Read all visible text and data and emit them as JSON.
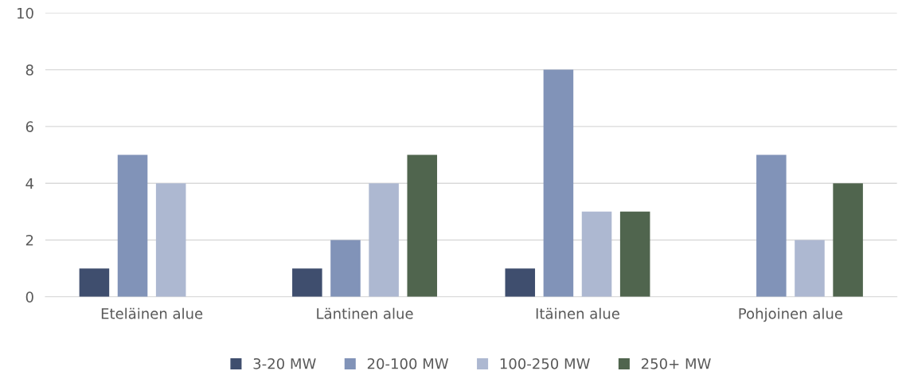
{
  "chart_data": {
    "type": "bar",
    "categories": [
      "Eteläinen alue",
      "Läntinen alue",
      "Itäinen alue",
      "Pohjoinen alue"
    ],
    "series": [
      {
        "name": "3-20 MW",
        "color": "#3f4e6e",
        "values": [
          1,
          1,
          1,
          0
        ]
      },
      {
        "name": "20-100 MW",
        "color": "#8193b8",
        "values": [
          5,
          2,
          8,
          5
        ]
      },
      {
        "name": "100-250 MW",
        "color": "#adb8d1",
        "values": [
          4,
          4,
          3,
          2
        ]
      },
      {
        "name": "250+ MW",
        "color": "#50654e",
        "values": [
          0,
          5,
          3,
          4
        ]
      }
    ],
    "ylim": [
      0,
      10
    ],
    "yticks": [
      0,
      2,
      4,
      6,
      8,
      10
    ],
    "grid": "y",
    "legend": "bottom"
  }
}
